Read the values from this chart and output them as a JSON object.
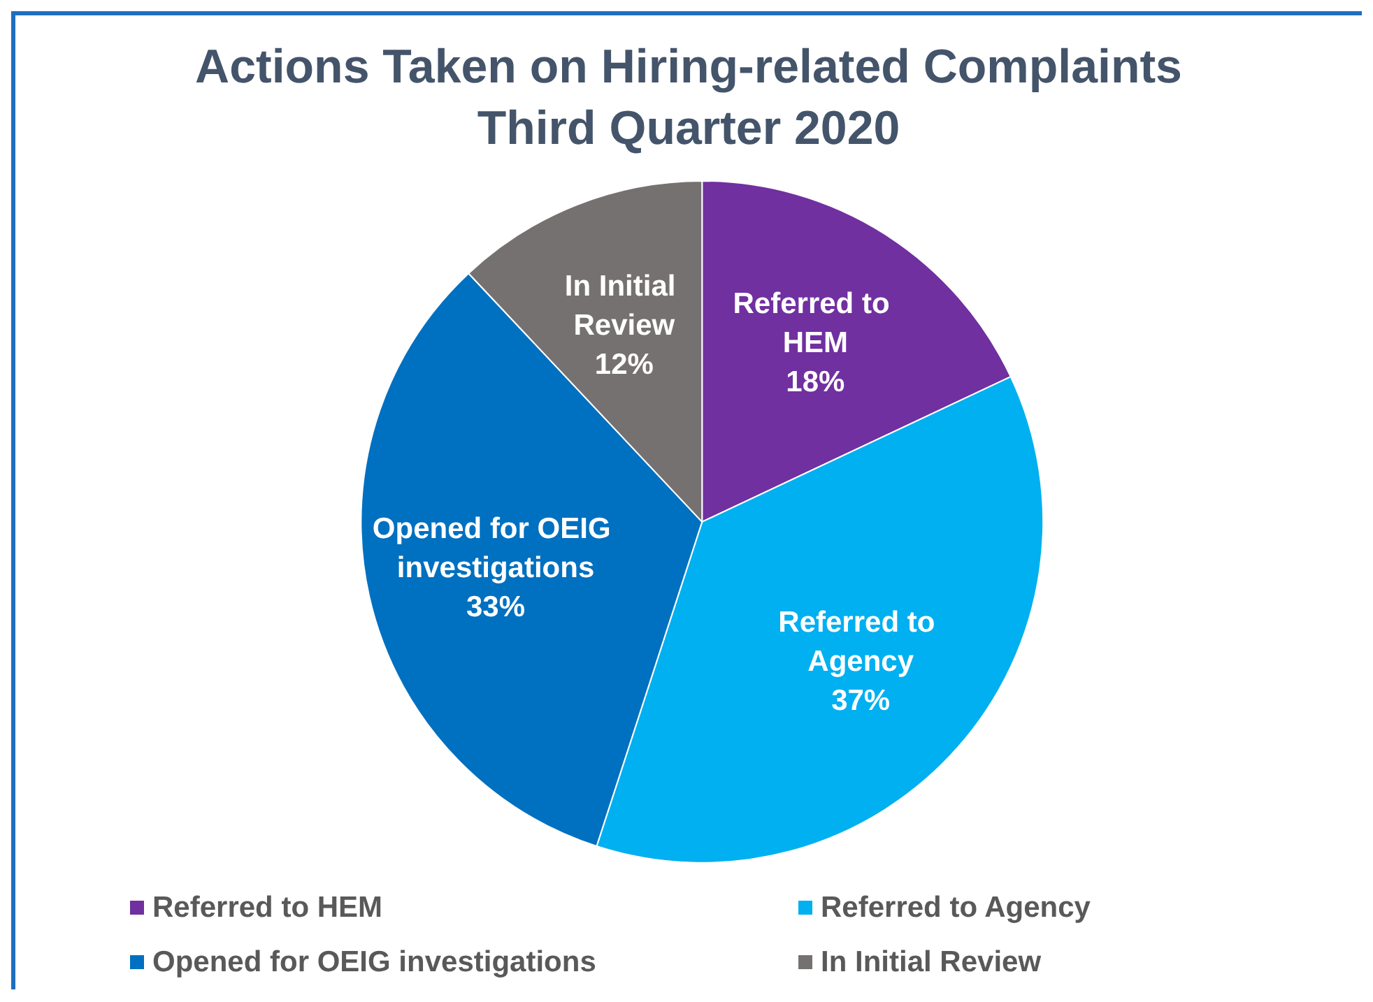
{
  "chart_data": {
    "type": "pie",
    "title": "Actions Taken on Hiring-related Complaints\nThird Quarter 2020",
    "categories": [
      "Referred to HEM",
      "Referred to Agency",
      "Opened for OEIG investigations",
      "In Initial Review"
    ],
    "values": [
      18,
      37,
      33,
      12
    ],
    "value_labels": [
      "18%",
      "37%",
      "33%",
      "12%"
    ],
    "colors": [
      "#7030a0",
      "#00b0f0",
      "#0070c0",
      "#767171"
    ],
    "legend": "bottom"
  }
}
